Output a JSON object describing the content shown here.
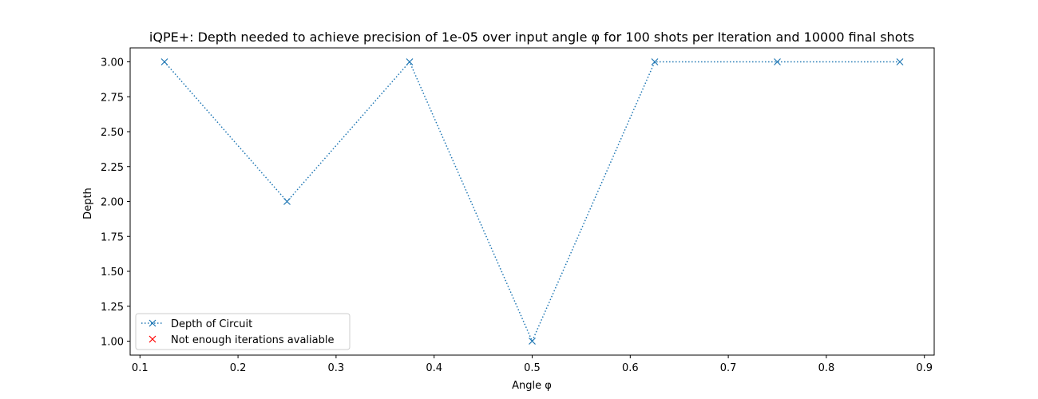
{
  "chart_data": {
    "type": "line",
    "title": "iQPE+: Depth needed to achieve precision of 1e-05 over input angle φ for 100 shots per Iteration and 10000 final shots",
    "xlabel": "Angle φ",
    "ylabel": "Depth",
    "xlim": [
      0.09,
      0.91
    ],
    "ylim": [
      0.9,
      3.1
    ],
    "xticks": [
      "0.1",
      "0.2",
      "0.3",
      "0.4",
      "0.5",
      "0.6",
      "0.7",
      "0.8",
      "0.9"
    ],
    "yticks": [
      "1.00",
      "1.25",
      "1.50",
      "1.75",
      "2.00",
      "2.25",
      "2.50",
      "2.75",
      "3.00"
    ],
    "grid": false,
    "legend_position": "lower-left",
    "series": [
      {
        "name": "Depth of Circuit",
        "color": "#1f77b4",
        "linestyle": "dotted",
        "marker": "x",
        "x": [
          0.125,
          0.25,
          0.375,
          0.5,
          0.625,
          0.75,
          0.875
        ],
        "y": [
          3,
          2,
          3,
          1,
          3,
          3,
          3
        ]
      },
      {
        "name": "Not enough iterations avaliable",
        "color": "#ff0000",
        "linestyle": "none",
        "marker": "x",
        "x": [],
        "y": []
      }
    ]
  }
}
